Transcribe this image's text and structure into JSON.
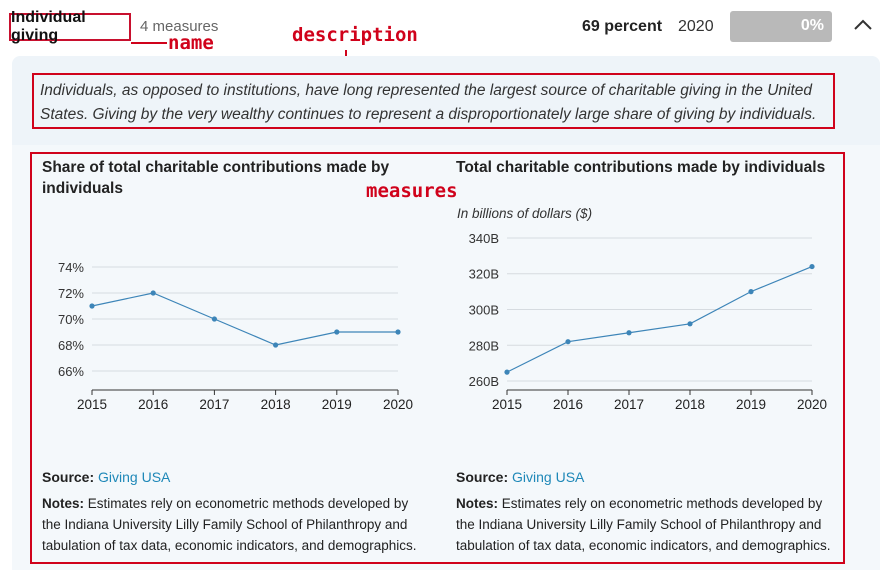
{
  "header": {
    "title": "Individual giving",
    "measures_count": "4 measures",
    "percent": "69 percent",
    "year": "2020",
    "progress_label": "0%",
    "progress_value": 0,
    "chevron_icon": "chevron-up-icon"
  },
  "annotations": {
    "name": "name",
    "description": "description",
    "measures": "measures"
  },
  "description": "Individuals, as opposed to institutions, have long represented the largest source of charitable giving in the United States. Giving by the very wealthy continues to represent a disproportionately large share of giving by individuals.",
  "measures": [
    {
      "title": "Share of total charitable contributions made by individuals",
      "subtitle": "",
      "source_label": "Source:",
      "source_link": "Giving USA",
      "notes_label": "Notes:",
      "notes_text": "Estimates rely on econometric methods developed by the Indiana University Lilly Family School of Philanthropy and tabulation of tax data, economic indicators, and demographics."
    },
    {
      "title": "Total charitable contributions made by individuals",
      "subtitle": "In billions of dollars ($)",
      "source_label": "Source:",
      "source_link": "Giving USA",
      "notes_label": "Notes:",
      "notes_text": "Estimates rely on econometric methods developed by the Indiana University Lilly Family School of Philanthropy and tabulation of tax data, economic indicators, and demographics."
    }
  ],
  "chart_data": [
    {
      "type": "line",
      "title": "Share of total charitable contributions made by individuals",
      "x": [
        "2015",
        "2016",
        "2017",
        "2018",
        "2019",
        "2020"
      ],
      "values": [
        71,
        72,
        70,
        68,
        69,
        69
      ],
      "yticks": [
        "66%",
        "68%",
        "70%",
        "72%",
        "74%"
      ],
      "ylim": [
        65,
        75
      ],
      "grid": true,
      "line_color": "#3d85b8"
    },
    {
      "type": "line",
      "title": "Total charitable contributions made by individuals",
      "x": [
        "2015",
        "2016",
        "2017",
        "2018",
        "2019",
        "2020"
      ],
      "values": [
        265,
        282,
        287,
        292,
        310,
        324
      ],
      "yticks": [
        "260B",
        "280B",
        "300B",
        "320B",
        "340B"
      ],
      "ylim": [
        255,
        345
      ],
      "grid": true,
      "line_color": "#3d85b8"
    }
  ]
}
